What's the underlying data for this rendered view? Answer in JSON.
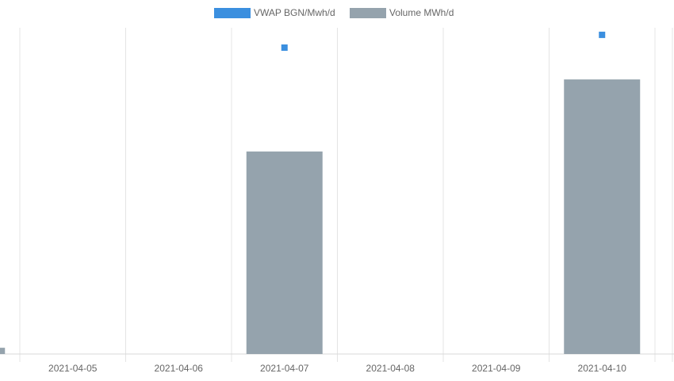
{
  "chart_data": {
    "type": "bar",
    "categories": [
      null,
      "2021-04-05",
      "2021-04-06",
      "2021-04-07",
      "2021-04-08",
      "2021-04-09",
      "2021-04-10"
    ],
    "series": [
      {
        "name": "VWAP BGN/Mwh/d",
        "color": "#3b8fdf",
        "type": "scatter",
        "axis": "y2",
        "values": [
          null,
          null,
          null,
          112.7,
          null,
          null,
          117.4
        ]
      },
      {
        "name": "Volume MWh/d",
        "color": "#95a3ad",
        "type": "bar",
        "values": [
          2.3,
          null,
          null,
          74.5,
          null,
          null,
          101
        ]
      }
    ],
    "ylim": [
      0,
      120
    ],
    "y2lim": [
      0,
      120
    ],
    "grid": true
  }
}
